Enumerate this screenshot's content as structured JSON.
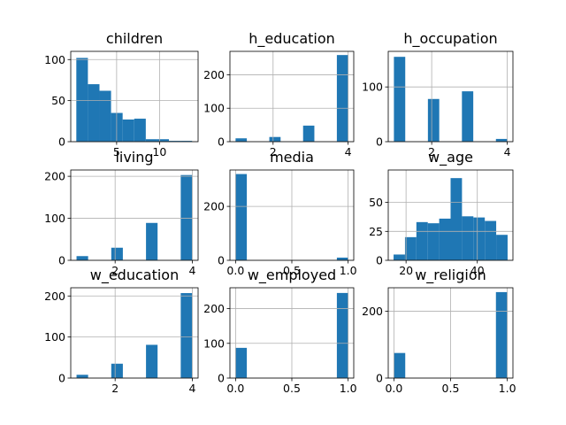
{
  "chart_data": [
    {
      "type": "bar",
      "title": "children",
      "xlim": [
        -0.35,
        14.5
      ],
      "ylim": [
        0,
        110
      ],
      "xticks": [
        {
          "v": 5,
          "label": "5"
        },
        {
          "v": 10,
          "label": "10"
        }
      ],
      "yticks": [
        {
          "v": 0,
          "label": "0"
        },
        {
          "v": 50,
          "label": "50"
        },
        {
          "v": 100,
          "label": "100"
        }
      ],
      "bins": [
        [
          0.3,
          1.65,
          102
        ],
        [
          1.65,
          3.0,
          70
        ],
        [
          3.0,
          4.35,
          62
        ],
        [
          4.35,
          5.7,
          35
        ],
        [
          5.7,
          7.05,
          27
        ],
        [
          7.05,
          8.4,
          28
        ],
        [
          8.4,
          9.75,
          3
        ],
        [
          9.75,
          11.1,
          3
        ],
        [
          11.1,
          12.45,
          1
        ],
        [
          12.45,
          13.8,
          1
        ]
      ]
    },
    {
      "type": "bar",
      "title": "h_education",
      "xlim": [
        0.85,
        4.15
      ],
      "ylim": [
        0,
        270
      ],
      "xticks": [
        {
          "v": 2,
          "label": "2"
        },
        {
          "v": 4,
          "label": "4"
        }
      ],
      "yticks": [
        {
          "v": 0,
          "label": "0"
        },
        {
          "v": 100,
          "label": "100"
        },
        {
          "v": 200,
          "label": "200"
        }
      ],
      "bins": [
        [
          1.0,
          1.3,
          10
        ],
        [
          1.3,
          1.6,
          0
        ],
        [
          1.6,
          1.9,
          0
        ],
        [
          1.9,
          2.2,
          14
        ],
        [
          2.2,
          2.5,
          0
        ],
        [
          2.5,
          2.8,
          0
        ],
        [
          2.8,
          3.1,
          48
        ],
        [
          3.1,
          3.4,
          0
        ],
        [
          3.4,
          3.7,
          0
        ],
        [
          3.7,
          4.0,
          259
        ]
      ]
    },
    {
      "type": "bar",
      "title": "h_occupation",
      "xlim": [
        0.85,
        4.15
      ],
      "ylim": [
        0,
        165
      ],
      "xticks": [
        {
          "v": 2,
          "label": "2"
        },
        {
          "v": 4,
          "label": "4"
        }
      ],
      "yticks": [
        {
          "v": 0,
          "label": "0"
        },
        {
          "v": 100,
          "label": "100"
        }
      ],
      "bins": [
        [
          1.0,
          1.3,
          155
        ],
        [
          1.3,
          1.6,
          0
        ],
        [
          1.6,
          1.9,
          0
        ],
        [
          1.9,
          2.2,
          78
        ],
        [
          2.2,
          2.5,
          0
        ],
        [
          2.5,
          2.8,
          0
        ],
        [
          2.8,
          3.1,
          92
        ],
        [
          3.1,
          3.4,
          0
        ],
        [
          3.4,
          3.7,
          0
        ],
        [
          3.7,
          4.0,
          5
        ]
      ]
    },
    {
      "type": "bar",
      "title": "living",
      "xlim": [
        0.85,
        4.15
      ],
      "ylim": [
        0,
        215
      ],
      "xticks": [
        {
          "v": 2,
          "label": "2"
        },
        {
          "v": 4,
          "label": "4"
        }
      ],
      "yticks": [
        {
          "v": 0,
          "label": "0"
        },
        {
          "v": 100,
          "label": "100"
        },
        {
          "v": 200,
          "label": "200"
        }
      ],
      "bins": [
        [
          1.0,
          1.3,
          10
        ],
        [
          1.3,
          1.6,
          0
        ],
        [
          1.6,
          1.9,
          0
        ],
        [
          1.9,
          2.2,
          30
        ],
        [
          2.2,
          2.5,
          0
        ],
        [
          2.5,
          2.8,
          0
        ],
        [
          2.8,
          3.1,
          89
        ],
        [
          3.1,
          3.4,
          0
        ],
        [
          3.4,
          3.7,
          0
        ],
        [
          3.7,
          4.0,
          203
        ]
      ]
    },
    {
      "type": "bar",
      "title": "media",
      "xlim": [
        -0.05,
        1.05
      ],
      "ylim": [
        0,
        335
      ],
      "xticks": [
        {
          "v": 0,
          "label": "0.0"
        },
        {
          "v": 0.5,
          "label": "0.5"
        },
        {
          "v": 1,
          "label": "1.0"
        }
      ],
      "yticks": [
        {
          "v": 0,
          "label": "0"
        },
        {
          "v": 200,
          "label": "200"
        }
      ],
      "bins": [
        [
          0.0,
          0.1,
          320
        ],
        [
          0.1,
          0.2,
          0
        ],
        [
          0.2,
          0.3,
          0
        ],
        [
          0.3,
          0.4,
          0
        ],
        [
          0.4,
          0.5,
          0
        ],
        [
          0.5,
          0.6,
          0
        ],
        [
          0.6,
          0.7,
          0
        ],
        [
          0.7,
          0.8,
          0
        ],
        [
          0.8,
          0.9,
          0
        ],
        [
          0.9,
          1.0,
          10
        ]
      ]
    },
    {
      "type": "bar",
      "title": "w_age",
      "xlim": [
        15.0,
        50.0
      ],
      "ylim": [
        0,
        78
      ],
      "xticks": [
        {
          "v": 20,
          "label": "20"
        },
        {
          "v": 40,
          "label": "40"
        }
      ],
      "yticks": [
        {
          "v": 0,
          "label": "0"
        },
        {
          "v": 25,
          "label": "25"
        },
        {
          "v": 50,
          "label": "50"
        }
      ],
      "bins": [
        [
          16.5,
          19.7,
          5
        ],
        [
          19.7,
          22.9,
          20
        ],
        [
          22.9,
          26.1,
          33
        ],
        [
          26.1,
          29.3,
          32
        ],
        [
          29.3,
          32.5,
          36
        ],
        [
          32.5,
          35.7,
          71
        ],
        [
          35.7,
          38.9,
          38
        ],
        [
          38.9,
          42.1,
          37
        ],
        [
          42.1,
          45.3,
          34
        ],
        [
          45.3,
          48.5,
          22
        ]
      ]
    },
    {
      "type": "bar",
      "title": "w_education",
      "xlim": [
        0.85,
        4.15
      ],
      "ylim": [
        0,
        220
      ],
      "xticks": [
        {
          "v": 2,
          "label": "2"
        },
        {
          "v": 4,
          "label": "4"
        }
      ],
      "yticks": [
        {
          "v": 0,
          "label": "0"
        },
        {
          "v": 100,
          "label": "100"
        },
        {
          "v": 200,
          "label": "200"
        }
      ],
      "bins": [
        [
          1.0,
          1.3,
          8
        ],
        [
          1.3,
          1.6,
          0
        ],
        [
          1.6,
          1.9,
          0
        ],
        [
          1.9,
          2.2,
          35
        ],
        [
          2.2,
          2.5,
          0
        ],
        [
          2.5,
          2.8,
          0
        ],
        [
          2.8,
          3.1,
          81
        ],
        [
          3.1,
          3.4,
          0
        ],
        [
          3.4,
          3.7,
          0
        ],
        [
          3.7,
          4.0,
          207
        ]
      ]
    },
    {
      "type": "bar",
      "title": "w_employed",
      "xlim": [
        -0.05,
        1.05
      ],
      "ylim": [
        0,
        260
      ],
      "xticks": [
        {
          "v": 0,
          "label": "0.0"
        },
        {
          "v": 0.5,
          "label": "0.5"
        },
        {
          "v": 1,
          "label": "1.0"
        }
      ],
      "yticks": [
        {
          "v": 0,
          "label": "0"
        },
        {
          "v": 100,
          "label": "100"
        },
        {
          "v": 200,
          "label": "200"
        }
      ],
      "bins": [
        [
          0.0,
          0.1,
          87
        ],
        [
          0.1,
          0.2,
          0
        ],
        [
          0.2,
          0.3,
          0
        ],
        [
          0.3,
          0.4,
          0
        ],
        [
          0.4,
          0.5,
          0
        ],
        [
          0.5,
          0.6,
          0
        ],
        [
          0.6,
          0.7,
          0
        ],
        [
          0.7,
          0.8,
          0
        ],
        [
          0.8,
          0.9,
          0
        ],
        [
          0.9,
          1.0,
          245
        ]
      ]
    },
    {
      "type": "bar",
      "title": "w_religion",
      "xlim": [
        -0.05,
        1.05
      ],
      "ylim": [
        0,
        270
      ],
      "xticks": [
        {
          "v": 0,
          "label": "0.0"
        },
        {
          "v": 0.5,
          "label": "0.5"
        },
        {
          "v": 1,
          "label": "1.0"
        }
      ],
      "yticks": [
        {
          "v": 0,
          "label": "0"
        },
        {
          "v": 200,
          "label": "200"
        }
      ],
      "bins": [
        [
          0.0,
          0.1,
          75
        ],
        [
          0.1,
          0.2,
          0
        ],
        [
          0.2,
          0.3,
          0
        ],
        [
          0.3,
          0.4,
          0
        ],
        [
          0.4,
          0.5,
          0
        ],
        [
          0.5,
          0.6,
          0
        ],
        [
          0.6,
          0.7,
          0
        ],
        [
          0.7,
          0.8,
          0
        ],
        [
          0.8,
          0.9,
          0
        ],
        [
          0.9,
          1.0,
          257
        ]
      ]
    }
  ],
  "colors": {
    "bar": "#1f77b4",
    "grid": "#b0b0b0",
    "axis": "#000000"
  },
  "grid": true
}
